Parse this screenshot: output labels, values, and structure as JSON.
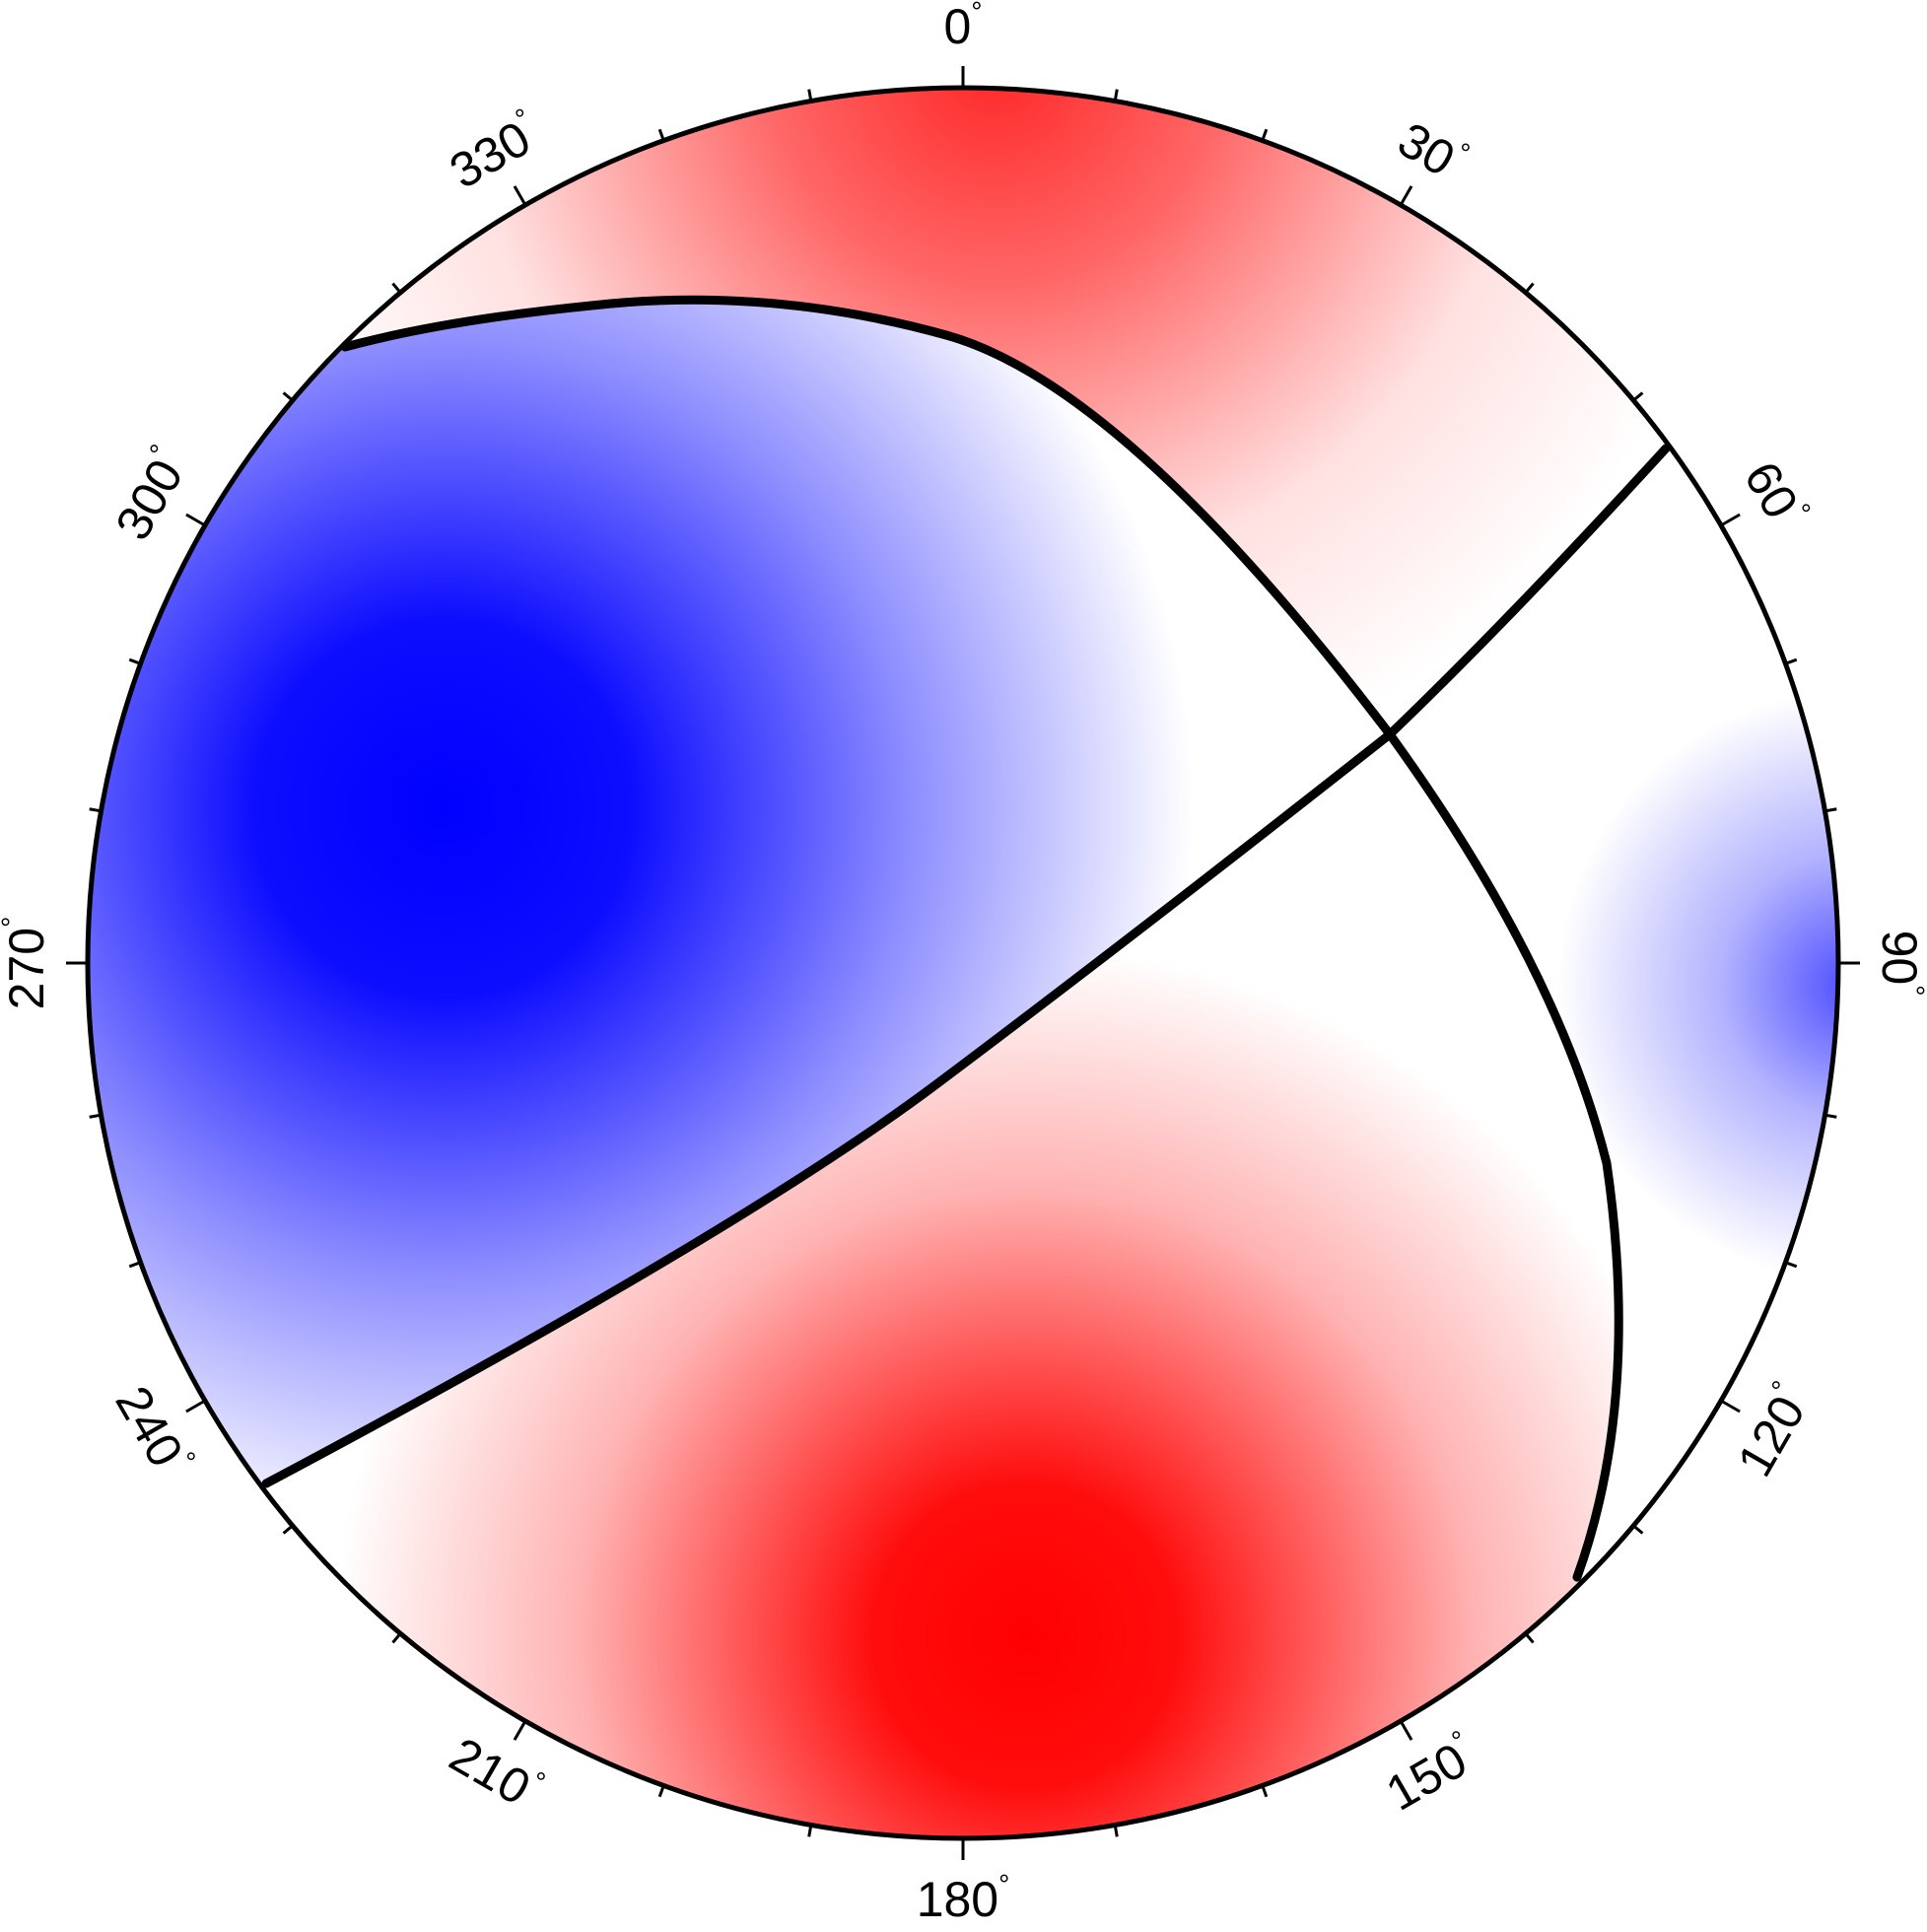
{
  "diagram": {
    "type": "focal-mechanism-beachball",
    "colors": {
      "compressional": "#ff0000",
      "dilatational": "#0000ff",
      "nodal": "#ffffff",
      "outline": "#000000"
    },
    "azimuth_labels": [
      {
        "deg": 0,
        "text": "0",
        "unit": "°"
      },
      {
        "deg": 30,
        "text": "30",
        "unit": "°"
      },
      {
        "deg": 60,
        "text": "60",
        "unit": "°"
      },
      {
        "deg": 90,
        "text": "90",
        "unit": "°"
      },
      {
        "deg": 120,
        "text": "120",
        "unit": "°"
      },
      {
        "deg": 150,
        "text": "150",
        "unit": "°"
      },
      {
        "deg": 180,
        "text": "180",
        "unit": "°"
      },
      {
        "deg": 210,
        "text": "210",
        "unit": "°"
      },
      {
        "deg": 240,
        "text": "240",
        "unit": "°"
      },
      {
        "deg": 270,
        "text": "270",
        "unit": "°"
      },
      {
        "deg": 300,
        "text": "300",
        "unit": "°"
      },
      {
        "deg": 330,
        "text": "330",
        "unit": "°"
      }
    ],
    "tick_interval_deg": 10
  }
}
